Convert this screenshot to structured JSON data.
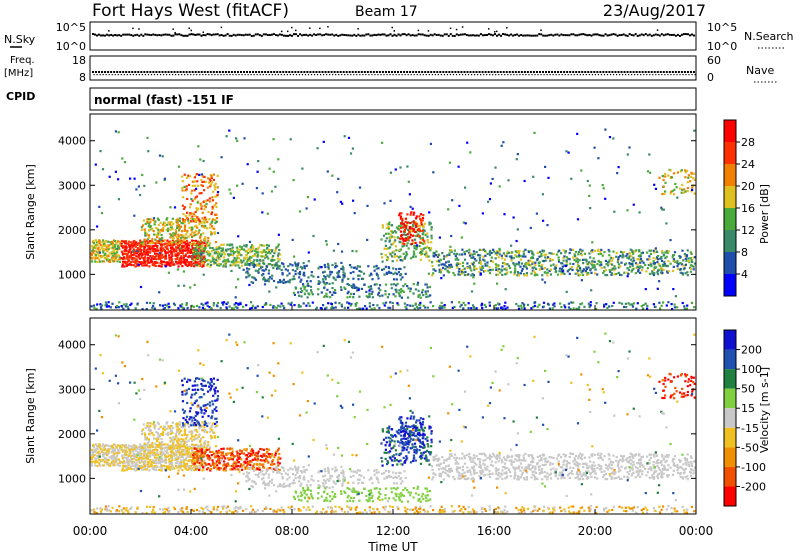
{
  "header": {
    "title": "Fort Hays West (fitACF)",
    "beam": "Beam 17",
    "date": "23/Aug/2017"
  },
  "chart_data": [
    {
      "type": "line",
      "panel": "nsky-nsearch",
      "ylabel_left": "N.Sky",
      "ylabel_right": "N.Search",
      "yticks_left": [
        "10^5",
        "10^0"
      ],
      "yticks_right": [
        "10^5",
        "10^0"
      ],
      "y_scale": "log",
      "ylim": [
        1,
        100000
      ]
    },
    {
      "type": "line",
      "panel": "freq-nave",
      "ylabel_left": "Freq.",
      "ylabel_left_unit": "[MHz]",
      "ylabel_right": "Nave",
      "yticks_left": [
        "18",
        "8"
      ],
      "yticks_right": [
        "60",
        "0"
      ],
      "ylim_left": [
        8,
        18
      ],
      "ylim_right": [
        0,
        60
      ]
    },
    {
      "type": "table",
      "panel": "cpid",
      "label": "CPID",
      "value": "normal (fast) -151 IF"
    },
    {
      "type": "heatmap",
      "panel": "power",
      "ylabel": "Slant Range [km]",
      "yticks": [
        "1000",
        "2000",
        "3000",
        "4000"
      ],
      "ylim": [
        200,
        4600
      ],
      "xlim": [
        "00:00",
        "24:00"
      ],
      "colorbar_label": "Power [dB]",
      "colorbar_ticks": [
        "4",
        "8",
        "12",
        "16",
        "20",
        "24",
        "28"
      ],
      "colorbar_range": [
        0,
        30
      ],
      "colors": [
        "#0000ff",
        "#1f4faa",
        "#3a8a6a",
        "#4aaa3a",
        "#e0c020",
        "#f08000",
        "#ff3000",
        "#ff0000"
      ]
    },
    {
      "type": "heatmap",
      "panel": "velocity",
      "ylabel": "Slant Range [km]",
      "yticks": [
        "1000",
        "2000",
        "3000",
        "4000"
      ],
      "ylim": [
        200,
        4600
      ],
      "xlim": [
        "00:00",
        "24:00"
      ],
      "xticks": [
        "00:00",
        "04:00",
        "08:00",
        "12:00",
        "16:00",
        "20:00",
        "00:00"
      ],
      "xlabel": "Time UT",
      "colorbar_label": "Velocity [m s-1]",
      "colorbar_ticks": [
        "200",
        "100",
        "50",
        "15",
        "-15",
        "-50",
        "-100",
        "-200"
      ],
      "colorbar_range": [
        -250,
        250
      ],
      "colors": [
        "#1010d0",
        "#2050b0",
        "#208040",
        "#80d040",
        "#c8c8c8",
        "#f0c020",
        "#f09000",
        "#f05000",
        "#ff0000"
      ]
    }
  ]
}
